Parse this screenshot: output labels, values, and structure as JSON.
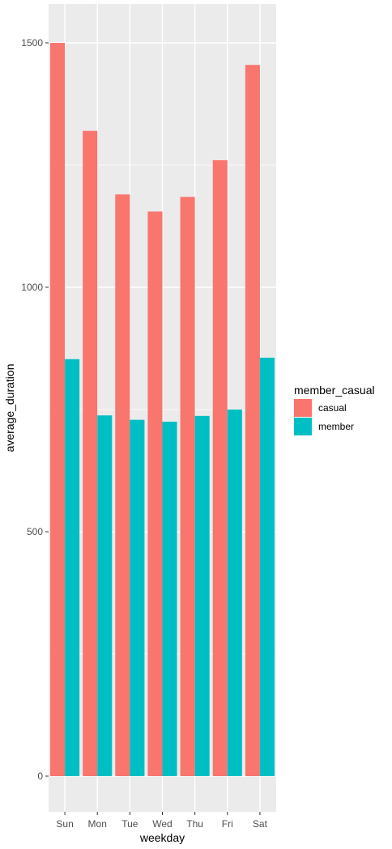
{
  "chart_data": {
    "type": "bar",
    "xlabel": "weekday",
    "ylabel": "average_duration",
    "categories": [
      "Sun",
      "Mon",
      "Tue",
      "Wed",
      "Thu",
      "Fri",
      "Sat"
    ],
    "series": [
      {
        "name": "casual",
        "color": "#F8766D",
        "values": [
          1500,
          1320,
          1190,
          1155,
          1185,
          1260,
          1455
        ]
      },
      {
        "name": "member",
        "color": "#00BFC4",
        "values": [
          853,
          738,
          729,
          725,
          737,
          750,
          856
        ]
      }
    ],
    "ylim": [
      0,
      1580
    ],
    "yticks": [
      0,
      500,
      1000,
      1500
    ],
    "yticks_minor": [
      250,
      750,
      1250
    ],
    "legend": {
      "title": "member_casual",
      "position": "right"
    },
    "grid": true,
    "panel_background": "#EBEBEB"
  }
}
